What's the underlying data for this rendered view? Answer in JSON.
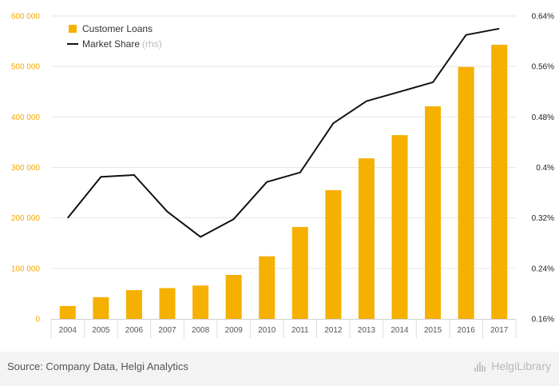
{
  "chart_data": {
    "type": "bar+line",
    "categories": [
      "2004",
      "2005",
      "2006",
      "2007",
      "2008",
      "2009",
      "2010",
      "2011",
      "2012",
      "2013",
      "2014",
      "2015",
      "2016",
      "2017"
    ],
    "series": [
      {
        "name": "Customer Loans",
        "type": "bar",
        "axis": "left",
        "color": "#f5b000",
        "values": [
          25500,
          43000,
          57000,
          61000,
          66000,
          87000,
          124000,
          182000,
          255000,
          318000,
          364000,
          421000,
          499000,
          543000
        ]
      },
      {
        "name": "Market Share",
        "axis_note": "(rhs)",
        "type": "line",
        "axis": "right",
        "color": "#111111",
        "values": [
          0.0032,
          0.00385,
          0.00388,
          0.0033,
          0.0029,
          0.00318,
          0.00377,
          0.00392,
          0.0047,
          0.00505,
          0.0052,
          0.00535,
          0.0061,
          0.0062
        ]
      }
    ],
    "y_left": {
      "min": 0,
      "max": 600000,
      "ticks": [
        "0",
        "100 000",
        "200 000",
        "300 000",
        "400 000",
        "500 000",
        "600 000"
      ]
    },
    "y_right": {
      "min": 0.0016,
      "max": 0.0064,
      "ticks": [
        "0.16%",
        "0.24%",
        "0.32%",
        "0.4%",
        "0.48%",
        "0.56%",
        "0.64%"
      ]
    },
    "grid": true,
    "legend_position": "top-left"
  },
  "footer": {
    "source": "Source: Company Data, Helgi Analytics",
    "brand": "HelgiLibrary"
  }
}
